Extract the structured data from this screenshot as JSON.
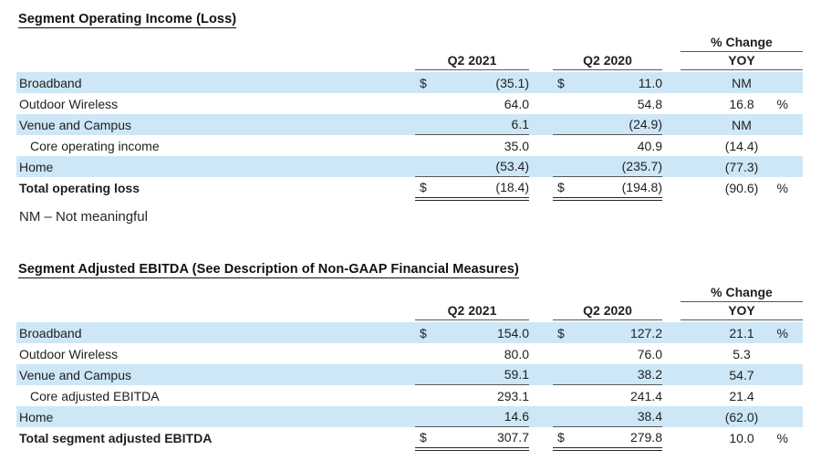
{
  "page": {
    "stripe_color": "#cde7f7",
    "text_color": "#1f1f1f",
    "single_rule_color": "#595959",
    "double_rule_color": "#262626"
  },
  "tables": [
    {
      "title": "Segment Operating Income (Loss)",
      "headers": {
        "pct_change": "% Change",
        "col1": "Q2 2021",
        "col2": "Q2 2020",
        "yoy": "YOY"
      },
      "rows": [
        {
          "label": "Broadband",
          "usd1": "$",
          "v1": "(35.1)",
          "usd2": "$",
          "v2": "11.0",
          "yoy": "NM",
          "pct": "",
          "shaded": true
        },
        {
          "label": "Outdoor Wireless",
          "usd1": "",
          "v1": "64.0",
          "usd2": "",
          "v2": "54.8",
          "yoy": "16.8",
          "pct": "%"
        },
        {
          "label": "Venue and Campus",
          "usd1": "",
          "v1": "6.1",
          "usd2": "",
          "v2": "(24.9)",
          "yoy": "NM",
          "pct": "",
          "shaded": true,
          "underline": true
        },
        {
          "label": "Core operating income",
          "usd1": "",
          "v1": "35.0",
          "usd2": "",
          "v2": "40.9",
          "yoy": "(14.4)",
          "pct": "",
          "indent": true
        },
        {
          "label": "Home",
          "usd1": "",
          "v1": "(53.4)",
          "usd2": "",
          "v2": "(235.7)",
          "yoy": "(77.3)",
          "pct": "",
          "shaded": true,
          "underline": true
        },
        {
          "label": "Total operating loss",
          "usd1": "$",
          "v1": "(18.4)",
          "usd2": "$",
          "v2": "(194.8)",
          "yoy": "(90.6)",
          "pct": "%",
          "bold": true,
          "total": true
        }
      ],
      "note": "NM – Not meaningful"
    },
    {
      "title": "Segment Adjusted EBITDA (See Description of Non-GAAP Financial Measures)",
      "headers": {
        "pct_change": "% Change",
        "col1": "Q2 2021",
        "col2": "Q2 2020",
        "yoy": "YOY"
      },
      "rows": [
        {
          "label": "Broadband",
          "usd1": "$",
          "v1": "154.0",
          "usd2": "$",
          "v2": "127.2",
          "yoy": "21.1",
          "pct": "%",
          "shaded": true
        },
        {
          "label": "Outdoor Wireless",
          "usd1": "",
          "v1": "80.0",
          "usd2": "",
          "v2": "76.0",
          "yoy": "5.3",
          "pct": ""
        },
        {
          "label": "Venue and Campus",
          "usd1": "",
          "v1": "59.1",
          "usd2": "",
          "v2": "38.2",
          "yoy": "54.7",
          "pct": "",
          "shaded": true,
          "underline": true
        },
        {
          "label": "Core adjusted EBITDA",
          "usd1": "",
          "v1": "293.1",
          "usd2": "",
          "v2": "241.4",
          "yoy": "21.4",
          "pct": "",
          "indent": true
        },
        {
          "label": "Home",
          "usd1": "",
          "v1": "14.6",
          "usd2": "",
          "v2": "38.4",
          "yoy": "(62.0)",
          "pct": "",
          "shaded": true,
          "underline": true
        },
        {
          "label": "Total segment adjusted EBITDA",
          "usd1": "$",
          "v1": "307.7",
          "usd2": "$",
          "v2": "279.8",
          "yoy": "10.0",
          "pct": "%",
          "bold": true,
          "total": true
        }
      ],
      "note": ""
    }
  ]
}
